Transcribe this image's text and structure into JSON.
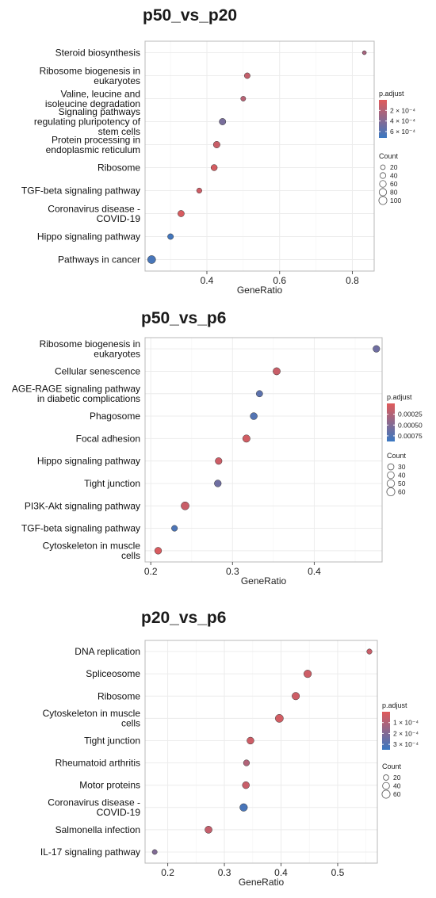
{
  "chart_data": [
    {
      "type": "scatter",
      "title": "p50_vs_p20",
      "xlabel": "GeneRatio",
      "ylabel": "",
      "xlim": [
        0.23,
        0.86
      ],
      "xticks": [
        0.4,
        0.6,
        0.8
      ],
      "grid": true,
      "legend_position": "right",
      "color_legend": {
        "title": "p.adjust",
        "low_color": "#e05a5a",
        "high_color": "#3a78c2",
        "tick_labels": [
          "2 × 10⁻⁴",
          "4 × 10⁻⁴",
          "6 × 10⁻⁴"
        ],
        "tick_values": [
          0.0002,
          0.0004,
          0.0006
        ],
        "range": [
          0.0,
          0.00072
        ]
      },
      "size_legend": {
        "title": "Count",
        "values": [
          20,
          40,
          60,
          80,
          100
        ],
        "labels": [
          "20",
          "40",
          "60",
          "80",
          "100"
        ]
      },
      "categories": [
        "Steroid biosynthesis",
        "Ribosome biogenesis in eukaryotes",
        "Valine, leucine and isoleucine degradation",
        "Signaling pathways regulating pluripotency of stem cells",
        "Protein processing in endoplasmic reticulum",
        "Ribosome",
        "TGF-beta signaling pathway",
        "Coronavirus disease - COVID-19",
        "Hippo signaling pathway",
        "Pathways in cancer"
      ],
      "points": [
        {
          "term": "Steroid biosynthesis",
          "x": 0.833,
          "count": 12,
          "padj": 0.00025
        },
        {
          "term": "Ribosome biogenesis in eukaryotes",
          "x": 0.511,
          "count": 40,
          "padj": 0.00012
        },
        {
          "term": "Valine, leucine and isoleucine degradation",
          "x": 0.5,
          "count": 25,
          "padj": 0.00018
        },
        {
          "term": "Signaling pathways regulating pluripotency of stem cells",
          "x": 0.443,
          "count": 58,
          "padj": 0.00045
        },
        {
          "term": "Protein processing in endoplasmic reticulum",
          "x": 0.427,
          "count": 60,
          "padj": 0.0001
        },
        {
          "term": "Ribosome",
          "x": 0.42,
          "count": 50,
          "padj": 5e-05
        },
        {
          "term": "TGF-beta signaling pathway",
          "x": 0.379,
          "count": 30,
          "padj": 8e-05
        },
        {
          "term": "Coronavirus disease - COVID-19",
          "x": 0.329,
          "count": 55,
          "padj": 4e-05
        },
        {
          "term": "Hippo signaling pathway",
          "x": 0.3,
          "count": 40,
          "padj": 0.00068
        },
        {
          "term": "Pathways in cancer",
          "x": 0.248,
          "count": 100,
          "padj": 0.00066
        }
      ]
    },
    {
      "type": "scatter",
      "title": "p50_vs_p6",
      "xlabel": "GeneRatio",
      "ylabel": "",
      "xlim": [
        0.193,
        0.483
      ],
      "xticks": [
        0.2,
        0.3,
        0.4
      ],
      "grid": true,
      "legend_position": "right",
      "color_legend": {
        "title": "p.adjust",
        "low_color": "#e05a5a",
        "high_color": "#3a78c2",
        "tick_labels": [
          "0.00025",
          "0.00050",
          "0.00075"
        ],
        "tick_values": [
          0.00025,
          0.0005,
          0.00075
        ],
        "range": [
          0.0,
          0.00088
        ]
      },
      "size_legend": {
        "title": "Count",
        "values": [
          30,
          40,
          50,
          60
        ],
        "labels": [
          "30",
          "40",
          "50",
          "60"
        ]
      },
      "categories": [
        "Ribosome biogenesis in eukaryotes",
        "Cellular senescence",
        "AGE-RAGE signaling pathway in diabetic complications",
        "Phagosome",
        "Focal adhesion",
        "Hippo signaling pathway",
        "Tight junction",
        "PI3K-Akt signaling pathway",
        "TGF-beta signaling pathway",
        "Cytoskeleton in muscle cells"
      ],
      "points": [
        {
          "term": "Ribosome biogenesis in eukaryotes",
          "x": 0.476,
          "count": 38,
          "padj": 0.0006
        },
        {
          "term": "Cellular senescence",
          "x": 0.354,
          "count": 46,
          "padj": 0.00012
        },
        {
          "term": "AGE-RAGE signaling pathway in diabetic complications",
          "x": 0.333,
          "count": 33,
          "padj": 0.0007
        },
        {
          "term": "Phagosome",
          "x": 0.326,
          "count": 42,
          "padj": 0.00075
        },
        {
          "term": "Focal adhesion",
          "x": 0.317,
          "count": 48,
          "padj": 8e-05
        },
        {
          "term": "Hippo signaling pathway",
          "x": 0.283,
          "count": 38,
          "padj": 0.0001
        },
        {
          "term": "Tight junction",
          "x": 0.282,
          "count": 40,
          "padj": 0.0006
        },
        {
          "term": "PI3K-Akt signaling pathway",
          "x": 0.242,
          "count": 60,
          "padj": 0.00012
        },
        {
          "term": "TGF-beta signaling pathway",
          "x": 0.229,
          "count": 26,
          "padj": 0.00078
        },
        {
          "term": "Cytoskeleton in muscle cells",
          "x": 0.209,
          "count": 40,
          "padj": 4e-05
        }
      ]
    },
    {
      "type": "scatter",
      "title": "p20_vs_p6",
      "xlabel": "GeneRatio",
      "ylabel": "",
      "xlim": [
        0.16,
        0.57
      ],
      "xticks": [
        0.2,
        0.3,
        0.4,
        0.5
      ],
      "grid": true,
      "legend_position": "right",
      "color_legend": {
        "title": "p.adjust",
        "low_color": "#e05a5a",
        "high_color": "#3a78c2",
        "tick_labels": [
          "1 × 10⁻⁴",
          "2 × 10⁻⁴",
          "3 × 10⁻⁴"
        ],
        "tick_values": [
          0.0001,
          0.0002,
          0.0003
        ],
        "range": [
          0.0,
          0.00035
        ]
      },
      "size_legend": {
        "title": "Count",
        "values": [
          20,
          40,
          60
        ],
        "labels": [
          "20",
          "40",
          "60"
        ]
      },
      "categories": [
        "DNA replication",
        "Spliceosome",
        "Ribosome",
        "Cytoskeleton in muscle cells",
        "Tight junction",
        "Rheumatoid arthritis",
        "Motor proteins",
        "Coronavirus disease - COVID-19",
        "Salmonella infection",
        "IL-17 signaling pathway"
      ],
      "points": [
        {
          "term": "DNA replication",
          "x": 0.556,
          "count": 18,
          "padj": 5e-05
        },
        {
          "term": "Spliceosome",
          "x": 0.447,
          "count": 52,
          "padj": 4e-05
        },
        {
          "term": "Ribosome",
          "x": 0.426,
          "count": 50,
          "padj": 4e-05
        },
        {
          "term": "Cytoskeleton in muscle cells",
          "x": 0.397,
          "count": 60,
          "padj": 3e-05
        },
        {
          "term": "Tight junction",
          "x": 0.346,
          "count": 42,
          "padj": 4e-05
        },
        {
          "term": "Rheumatoid arthritis",
          "x": 0.339,
          "count": 28,
          "padj": 0.0001
        },
        {
          "term": "Motor proteins",
          "x": 0.338,
          "count": 42,
          "padj": 5e-05
        },
        {
          "term": "Coronavirus disease - COVID-19",
          "x": 0.334,
          "count": 52,
          "padj": 0.00032
        },
        {
          "term": "Salmonella infection",
          "x": 0.272,
          "count": 45,
          "padj": 6e-05
        },
        {
          "term": "IL-17 signaling pathway",
          "x": 0.177,
          "count": 15,
          "padj": 0.0002
        }
      ]
    }
  ]
}
